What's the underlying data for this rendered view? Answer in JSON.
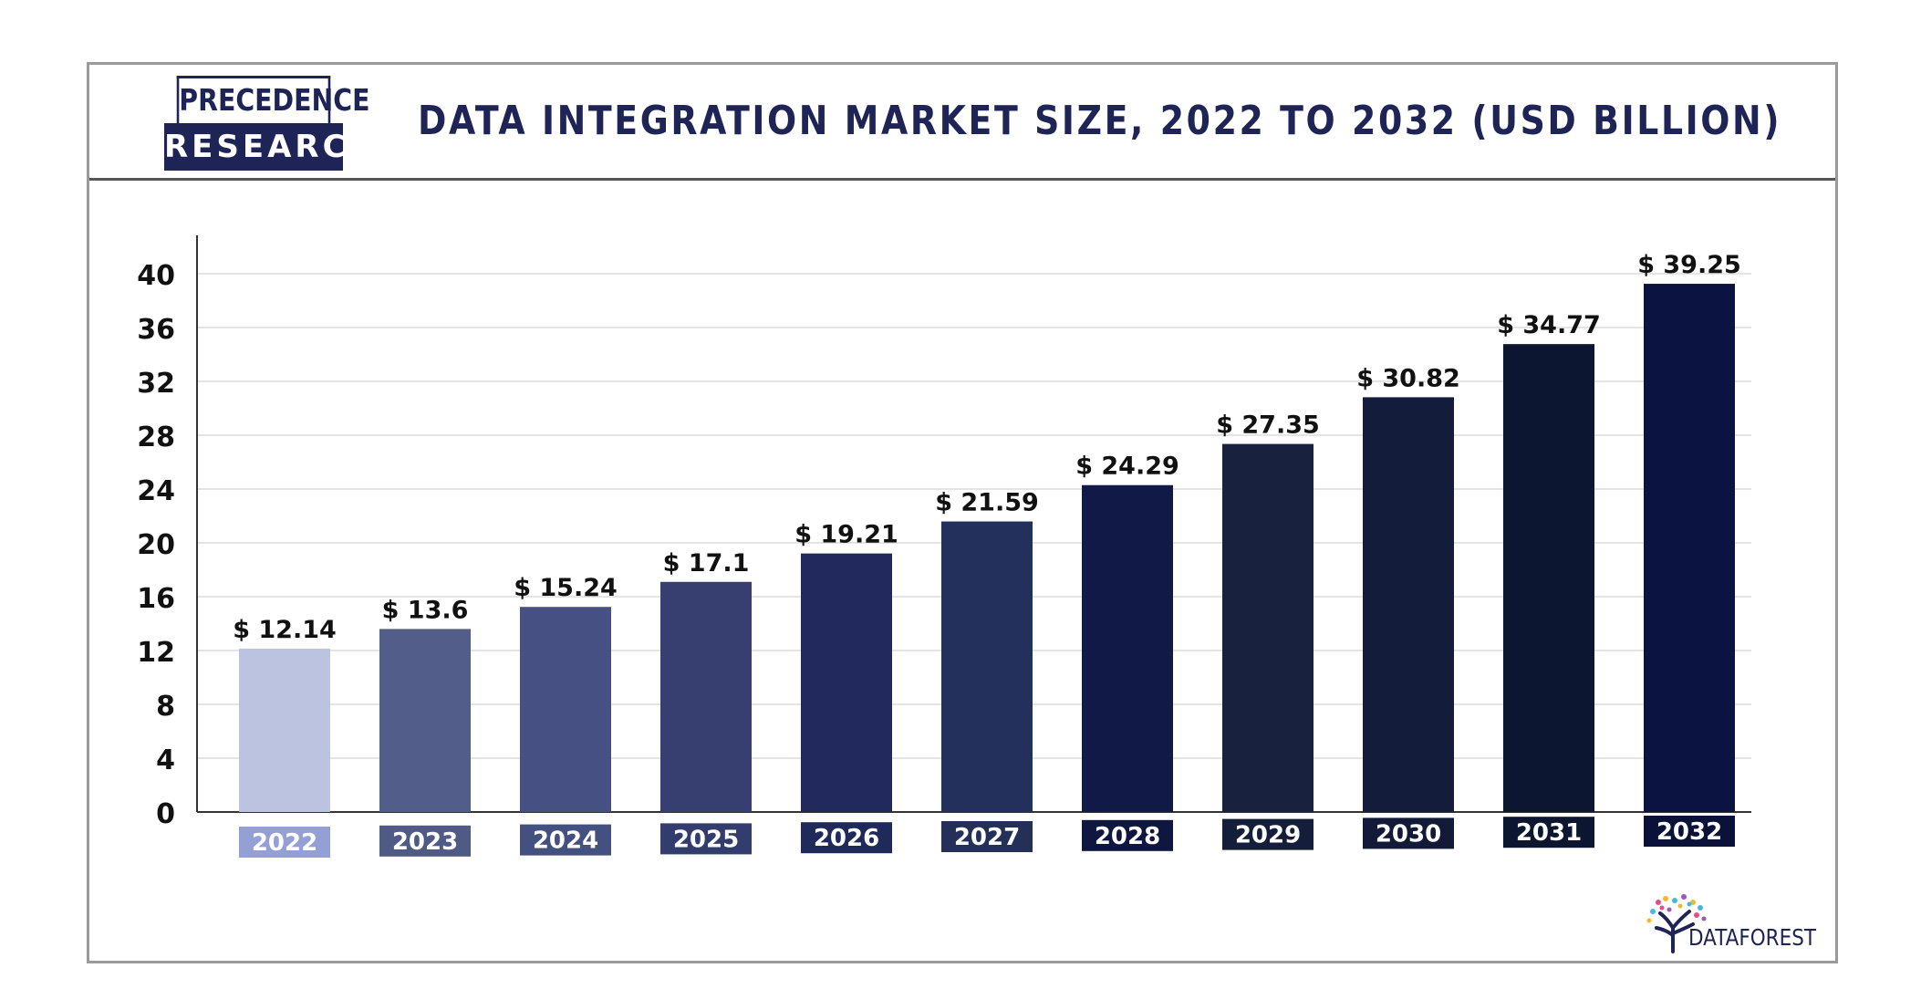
{
  "brand": {
    "logo_line1": "PRECEDENCE",
    "logo_line2": "RESEARCH",
    "watermark": "DATAFOREST",
    "colors": {
      "navy": "#1f2456",
      "frame": "#9a9a9a"
    }
  },
  "chart_data": {
    "type": "bar",
    "title": "DATA INTEGRATION MARKET SIZE, 2022 TO 2032 (USD BILLION)",
    "xlabel": "",
    "ylabel": "",
    "categories": [
      "2022",
      "2023",
      "2024",
      "2025",
      "2026",
      "2027",
      "2028",
      "2029",
      "2030",
      "2031",
      "2032"
    ],
    "values": [
      12.14,
      13.6,
      15.24,
      17.1,
      19.21,
      21.59,
      24.29,
      27.35,
      30.82,
      34.77,
      39.25
    ],
    "value_labels": [
      "$ 12.14",
      "$ 13.6",
      "$ 15.24",
      "$ 17.1",
      "$ 19.21",
      "$ 21.59",
      "$ 24.29",
      "$ 27.35",
      "$ 30.82",
      "$ 34.77",
      "$ 39.25"
    ],
    "bar_colors": [
      "#bcc3e1",
      "#525d89",
      "#465082",
      "#363f70",
      "#222a5d",
      "#24305c",
      "#111a47",
      "#18223f",
      "#131c3a",
      "#0d1631",
      "#0b1440"
    ],
    "tick_colors": [
      "#949fd6",
      "#4f5a85",
      "#44507f",
      "#333d6d",
      "#202a5a",
      "#243058",
      "#0f1740",
      "#141d3a",
      "#121a38",
      "#0d1630",
      "#0a123a"
    ],
    "yticks": [
      0,
      4,
      8,
      12,
      16,
      20,
      24,
      28,
      32,
      36,
      40
    ],
    "ylim": [
      0,
      40
    ],
    "grid": true,
    "legend": "none"
  }
}
